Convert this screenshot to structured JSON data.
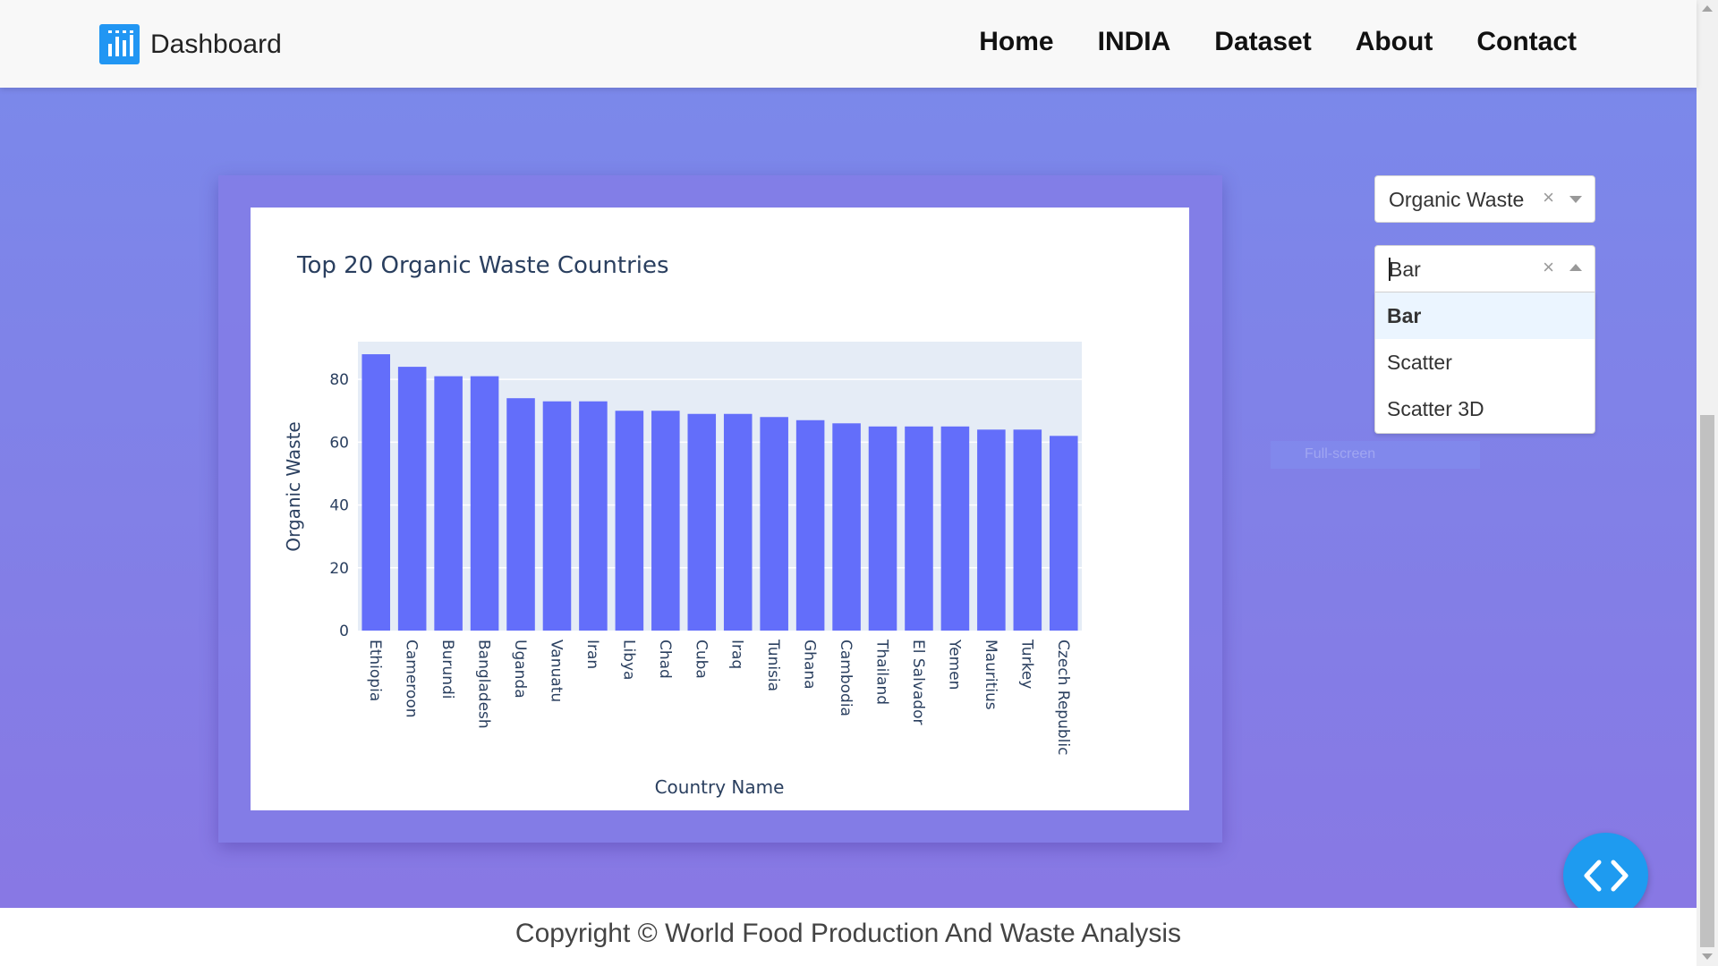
{
  "navbar": {
    "brand": "Dashboard",
    "links": [
      "Home",
      "INDIA",
      "Dataset",
      "About",
      "Contact"
    ]
  },
  "controls": {
    "metric_select": {
      "value": "Organic Waste",
      "clear": "×"
    },
    "chart_type_select": {
      "value": "Bar",
      "clear": "×",
      "options": [
        "Bar",
        "Scatter",
        "Scatter 3D"
      ],
      "highlighted": "Bar"
    }
  },
  "hidden_label": "Full-screen",
  "footer": {
    "text": "Copyright © World Food Production And Waste Analysis"
  },
  "colors": {
    "bar": "#636efa",
    "plot_bg": "#e5ecf6",
    "accent": "#1e9bf0"
  },
  "icons": {
    "brand": "bar-chart-icon",
    "fab": "code-icon"
  },
  "chart_data": {
    "type": "bar",
    "title": "Top 20 Organic Waste Countries",
    "xlabel": "Country Name",
    "ylabel": "Organic Waste",
    "categories": [
      "Ethiopia",
      "Cameroon",
      "Burundi",
      "Bangladesh",
      "Uganda",
      "Vanuatu",
      "Iran",
      "Libya",
      "Chad",
      "Cuba",
      "Iraq",
      "Tunisia",
      "Ghana",
      "Cambodia",
      "Thailand",
      "El Salvador",
      "Yemen",
      "Mauritius",
      "Turkey",
      "Czech Republic"
    ],
    "values": [
      88,
      84,
      81,
      81,
      74,
      73,
      73,
      70,
      70,
      69,
      69,
      68,
      67,
      66,
      65,
      65,
      65,
      64,
      64,
      62
    ],
    "yticks": [
      0,
      20,
      40,
      60,
      80
    ],
    "ylim": [
      0,
      92
    ]
  }
}
